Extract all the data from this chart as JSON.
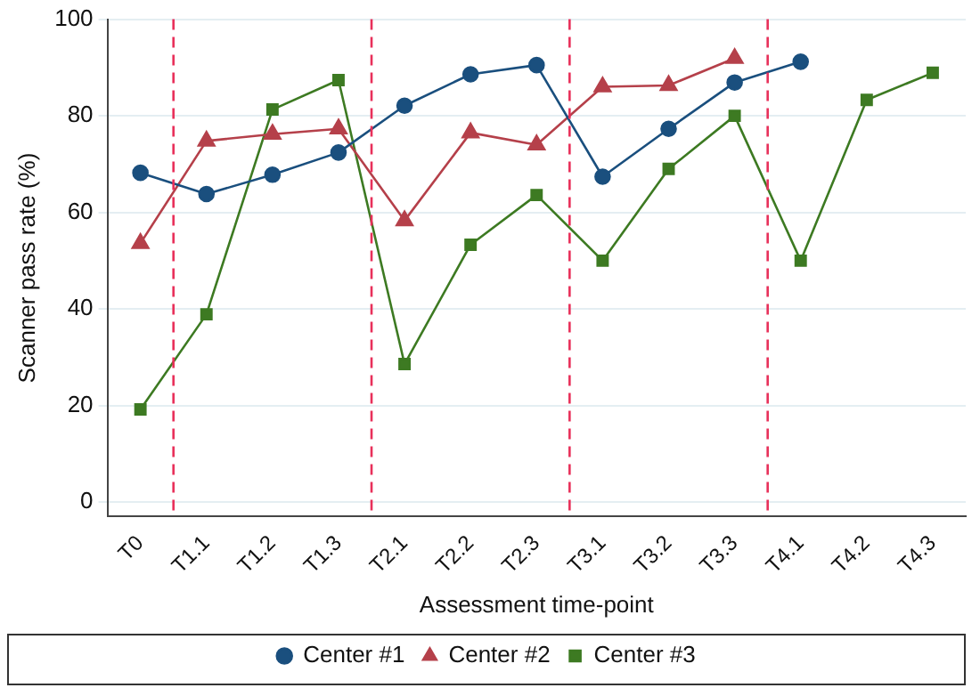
{
  "chart_data": {
    "type": "line",
    "xlabel": "Assessment time-point",
    "ylabel": "Scanner pass rate (%)",
    "categories": [
      "T0",
      "T1.1",
      "T1.2",
      "T1.3",
      "T2.1",
      "T2.2",
      "T2.3",
      "T3.1",
      "T3.2",
      "T3.3",
      "T4.1",
      "T4.2",
      "T4.3"
    ],
    "series": [
      {
        "name": "Center #1",
        "color": "#1a4f7e",
        "marker": "circle",
        "values": [
          68.2,
          63.8,
          67.8,
          72.4,
          82.1,
          88.6,
          90.5,
          67.4,
          77.3,
          86.9,
          91.2,
          null,
          null
        ]
      },
      {
        "name": "Center #2",
        "color": "#b5404a",
        "marker": "triangle",
        "values": [
          53.6,
          74.8,
          76.2,
          77.3,
          58.3,
          76.5,
          74.0,
          86.0,
          86.3,
          91.9,
          null,
          null,
          null
        ]
      },
      {
        "name": "Center #3",
        "color": "#3d7a22",
        "marker": "square",
        "values": [
          19.2,
          38.9,
          81.3,
          87.4,
          28.6,
          53.3,
          63.6,
          50.0,
          69.0,
          80.0,
          50.0,
          83.3,
          88.9
        ]
      }
    ],
    "ylim": [
      -3,
      100
    ],
    "yticks": [
      0,
      20,
      40,
      60,
      80,
      100
    ],
    "grid": "y",
    "legend": "bottom",
    "line_style": "solid"
  }
}
